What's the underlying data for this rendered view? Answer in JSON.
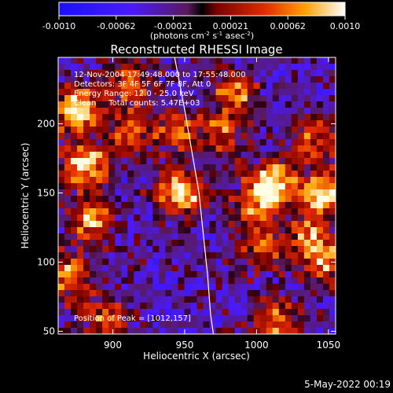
{
  "colorbar": {
    "ticks": [
      "-0.0010",
      "-0.00062",
      "-0.00021",
      "0.00021",
      "0.00062",
      "0.0010"
    ],
    "units_prefix": "(photons cm",
    "units_exp1": "-2",
    "units_mid1": " s",
    "units_exp2": "-1",
    "units_mid2": " asec",
    "units_exp3": "-2",
    "units_suffix": ")"
  },
  "chart_data": {
    "type": "heatmap",
    "title": "Reconstructed RHESSI Image",
    "xlabel": "Heliocentric X (arcsec)",
    "ylabel": "Heliocentric Y (arcsec)",
    "xlim": [
      862,
      1055
    ],
    "ylim": [
      48,
      248
    ],
    "xticks": [
      900,
      950,
      1000,
      1050
    ],
    "yticks": [
      50,
      100,
      150,
      200
    ],
    "color_range": [
      -0.001,
      0.001
    ],
    "grid": false,
    "info_lines": [
      "12-Nov-2004 17:49:48.000 to 17:55:48.000",
      "Detectors: 3F 4F 5F 6F 7F 8F, Att 0",
      "Energy Range: 12.0 - 25.0 keV",
      "Clean     Total counts: 5.47E+03"
    ],
    "peak_label": "Position of Peak = [1012,157]",
    "limb_curve": [
      [
        943,
        248
      ],
      [
        950,
        210
      ],
      [
        955,
        180
      ],
      [
        960,
        150
      ],
      [
        963,
        120
      ],
      [
        966,
        90
      ],
      [
        968,
        62
      ],
      [
        970,
        48
      ]
    ],
    "bright_sources": [
      {
        "x": 875,
        "y": 210,
        "v": 1.0
      },
      {
        "x": 880,
        "y": 170,
        "v": 0.95
      },
      {
        "x": 885,
        "y": 130,
        "v": 0.75
      },
      {
        "x": 870,
        "y": 90,
        "v": 0.7
      },
      {
        "x": 895,
        "y": 60,
        "v": 0.6
      },
      {
        "x": 910,
        "y": 230,
        "v": 0.6
      },
      {
        "x": 912,
        "y": 195,
        "v": 0.55
      },
      {
        "x": 948,
        "y": 150,
        "v": 0.95
      },
      {
        "x": 945,
        "y": 195,
        "v": 0.5
      },
      {
        "x": 975,
        "y": 195,
        "v": 0.55
      },
      {
        "x": 985,
        "y": 222,
        "v": 0.6
      },
      {
        "x": 1000,
        "y": 140,
        "v": 0.6
      },
      {
        "x": 1005,
        "y": 110,
        "v": 0.5
      },
      {
        "x": 1012,
        "y": 157,
        "v": 1.0
      },
      {
        "x": 1012,
        "y": 60,
        "v": 0.7
      },
      {
        "x": 1040,
        "y": 190,
        "v": 0.55
      },
      {
        "x": 1048,
        "y": 150,
        "v": 1.0
      },
      {
        "x": 1048,
        "y": 100,
        "v": 0.7
      },
      {
        "x": 1035,
        "y": 120,
        "v": 0.6
      }
    ]
  },
  "footer": {
    "date": "5-May-2022 00:19"
  }
}
